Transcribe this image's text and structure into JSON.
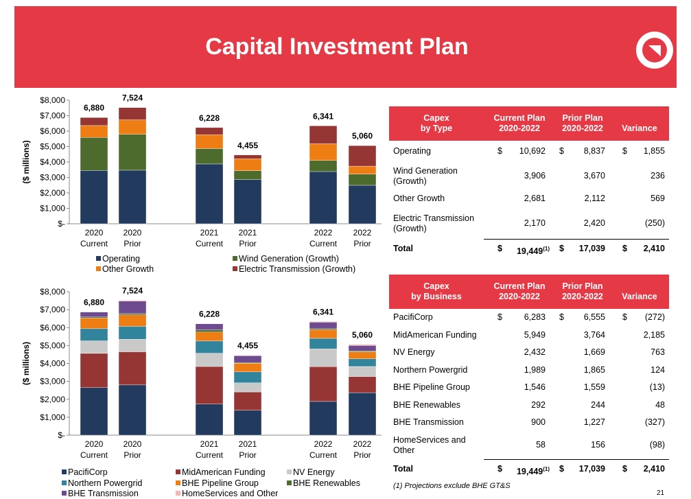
{
  "header": {
    "title": "Capital Investment Plan"
  },
  "colors": {
    "header_bg": "#e53a45",
    "operating": "#223a5e",
    "wind": "#4e6b2e",
    "other_growth": "#ee7d14",
    "transmission": "#963634",
    "pacificorp": "#223a5e",
    "midamerican": "#963634",
    "nv_energy": "#c9c9c9",
    "northern_powergrid": "#31849b",
    "bhe_pipeline": "#ee7d14",
    "bhe_renewables": "#4e6b2e",
    "bhe_transmission": "#6e4a8e",
    "homeservices": "#f4b6b4"
  },
  "chart_data": [
    {
      "type": "bar",
      "stacked": true,
      "ylabel": "($ millions)",
      "ylim": [
        0,
        8000
      ],
      "yticks": [
        "$-",
        "$1,000",
        "$2,000",
        "$3,000",
        "$4,000",
        "$5,000",
        "$6,000",
        "$7,000",
        "$8,000"
      ],
      "categories": [
        "2020 Current",
        "2020 Prior",
        "2021 Current",
        "2021 Prior",
        "2022 Current",
        "2022 Prior"
      ],
      "category_lines": [
        [
          "2020",
          "Current"
        ],
        [
          "2020",
          "Prior"
        ],
        [
          "2021",
          "Current"
        ],
        [
          "2021",
          "Prior"
        ],
        [
          "2022",
          "Current"
        ],
        [
          "2022",
          "Prior"
        ]
      ],
      "totals": [
        "6,880",
        "7,524",
        "6,228",
        "4,455",
        "6,341",
        "5,060"
      ],
      "legend_position": "bottom",
      "series": [
        {
          "name": "Operating",
          "color": "#223a5e",
          "values": [
            3450,
            3470,
            3870,
            2860,
            3380,
            2490
          ]
        },
        {
          "name": "Wind Generation (Growth)",
          "color": "#4e6b2e",
          "values": [
            2140,
            2330,
            1000,
            580,
            720,
            730
          ]
        },
        {
          "name": "Other Growth",
          "color": "#ee7d14",
          "values": [
            770,
            930,
            900,
            770,
            1080,
            510
          ]
        },
        {
          "name": "Electric Transmission (Growth)",
          "color": "#963634",
          "values": [
            520,
            794,
            458,
            245,
            1161,
            1330
          ]
        }
      ]
    },
    {
      "type": "bar",
      "stacked": true,
      "ylabel": "($ millions)",
      "ylim": [
        0,
        8000
      ],
      "yticks": [
        "$-",
        "$1,000",
        "$2,000",
        "$3,000",
        "$4,000",
        "$5,000",
        "$6,000",
        "$7,000",
        "$8,000"
      ],
      "categories": [
        "2020 Current",
        "2020 Prior",
        "2021 Current",
        "2021 Prior",
        "2022 Current",
        "2022 Prior"
      ],
      "category_lines": [
        [
          "2020",
          "Current"
        ],
        [
          "2020",
          "Prior"
        ],
        [
          "2021",
          "Current"
        ],
        [
          "2021",
          "Prior"
        ],
        [
          "2022",
          "Current"
        ],
        [
          "2022",
          "Prior"
        ]
      ],
      "totals": [
        "6,880",
        "7,524",
        "6,228",
        "4,455",
        "6,341",
        "5,060"
      ],
      "legend_position": "bottom",
      "series": [
        {
          "name": "PacifiCorp",
          "color": "#223a5e",
          "values": [
            2650,
            2800,
            1730,
            1390,
            1880,
            2370
          ]
        },
        {
          "name": "MidAmerican Funding",
          "color": "#963634",
          "values": [
            1910,
            1850,
            2100,
            1020,
            1940,
            900
          ]
        },
        {
          "name": "NV Energy",
          "color": "#c9c9c9",
          "values": [
            700,
            700,
            740,
            510,
            990,
            560
          ]
        },
        {
          "name": "Northern Powergrid",
          "color": "#31849b",
          "values": [
            680,
            720,
            680,
            610,
            590,
            430
          ]
        },
        {
          "name": "BHE Pipeline Group",
          "color": "#ee7d14",
          "values": [
            590,
            640,
            500,
            480,
            480,
            390
          ]
        },
        {
          "name": "BHE Renewables",
          "color": "#4e6b2e",
          "values": [
            60,
            70,
            120,
            40,
            60,
            50
          ]
        },
        {
          "name": "BHE Transmission",
          "color": "#6e4a8e",
          "values": [
            280,
            700,
            340,
            380,
            360,
            300
          ]
        },
        {
          "name": "HomeServices and Other",
          "color": "#f4b6b4",
          "values": [
            10,
            44,
            18,
            25,
            41,
            60
          ]
        }
      ]
    }
  ],
  "table_type": {
    "headers": [
      [
        "Capex",
        "by Type"
      ],
      [
        "Current Plan",
        "2020-2022"
      ],
      [
        "Prior Plan",
        "2020-2022"
      ],
      [
        "Variance"
      ]
    ],
    "rows": [
      {
        "label": [
          "Operating"
        ],
        "current": "10,692",
        "prior": "8,837",
        "variance": "1,855",
        "dollar": "$"
      },
      {
        "label": [
          "Wind Generation",
          "(Growth)"
        ],
        "current": "3,906",
        "prior": "3,670",
        "variance": "236",
        "dollar": ""
      },
      {
        "label": [
          "Other Growth"
        ],
        "current": "2,681",
        "prior": "2,112",
        "variance": "569",
        "dollar": ""
      },
      {
        "label": [
          "Electric Transmission",
          "(Growth)"
        ],
        "current": "2,170",
        "prior": "2,420",
        "variance": "(250)",
        "dollar": ""
      }
    ],
    "total": {
      "label": "Total",
      "dollar": "$",
      "current": "19,449",
      "current_note": "(1)",
      "prior": "17,039",
      "variance": "2,410"
    }
  },
  "table_business": {
    "headers": [
      [
        "Capex",
        "by Business"
      ],
      [
        "Current Plan",
        "2020-2022"
      ],
      [
        "Prior Plan",
        "2020-2022"
      ],
      [
        "Variance"
      ]
    ],
    "rows": [
      {
        "label": [
          "PacifiCorp"
        ],
        "current": "6,283",
        "prior": "6,555",
        "variance": "(272)",
        "dollar": "$"
      },
      {
        "label": [
          "MidAmerican Funding"
        ],
        "current": "5,949",
        "prior": "3,764",
        "variance": "2,185",
        "dollar": ""
      },
      {
        "label": [
          "NV Energy"
        ],
        "current": "2,432",
        "prior": "1,669",
        "variance": "763",
        "dollar": ""
      },
      {
        "label": [
          "Northern Powergrid"
        ],
        "current": "1,989",
        "prior": "1,865",
        "variance": "124",
        "dollar": ""
      },
      {
        "label": [
          "BHE Pipeline Group"
        ],
        "current": "1,546",
        "prior": "1,559",
        "variance": "(13)",
        "dollar": ""
      },
      {
        "label": [
          "BHE Renewables"
        ],
        "current": "292",
        "prior": "244",
        "variance": "48",
        "dollar": ""
      },
      {
        "label": [
          "BHE Transmission"
        ],
        "current": "900",
        "prior": "1,227",
        "variance": "(327)",
        "dollar": ""
      },
      {
        "label": [
          "HomeServices and",
          "Other"
        ],
        "current": "58",
        "prior": "156",
        "variance": "(98)",
        "dollar": ""
      }
    ],
    "total": {
      "label": "Total",
      "dollar": "$",
      "current": "19,449",
      "current_note": "(1)",
      "prior": "17,039",
      "variance": "2,410"
    }
  },
  "footnote": "(1)  Projections exclude BHE GT&S",
  "page_number": "21"
}
